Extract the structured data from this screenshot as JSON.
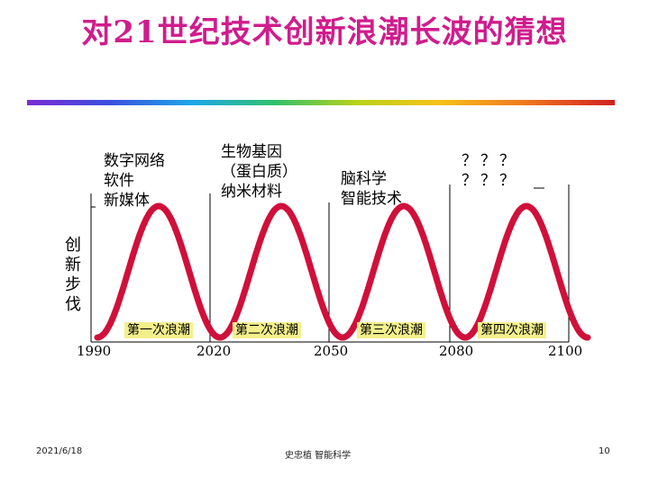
{
  "title": "对21世纪技术创新浪潮长波的猜想",
  "vertical_axis_label": [
    "创",
    "新",
    "步",
    "伐"
  ],
  "columns": [
    {
      "label": "数字网络\n软件\n新媒体"
    },
    {
      "label": "生物基因\n（蛋白质）\n纳米材料"
    },
    {
      "label": "脑科学\n智能技术"
    },
    {
      "label": "？？？\n？？？"
    }
  ],
  "waves": [
    {
      "label": "第一次浪潮"
    },
    {
      "label": "第二次浪潮"
    },
    {
      "label": "第三次浪潮"
    },
    {
      "label": "第四次浪潮"
    }
  ],
  "years": [
    "1990",
    "2020",
    "2050",
    "2080",
    "2100"
  ],
  "footer": {
    "date": "2021/6/18",
    "author": "史忠植  智能科学",
    "page": "10"
  },
  "colors": {
    "title": "#d01c8c",
    "wave": "#d0103a",
    "wave_label_bg": "#f3f08c"
  }
}
